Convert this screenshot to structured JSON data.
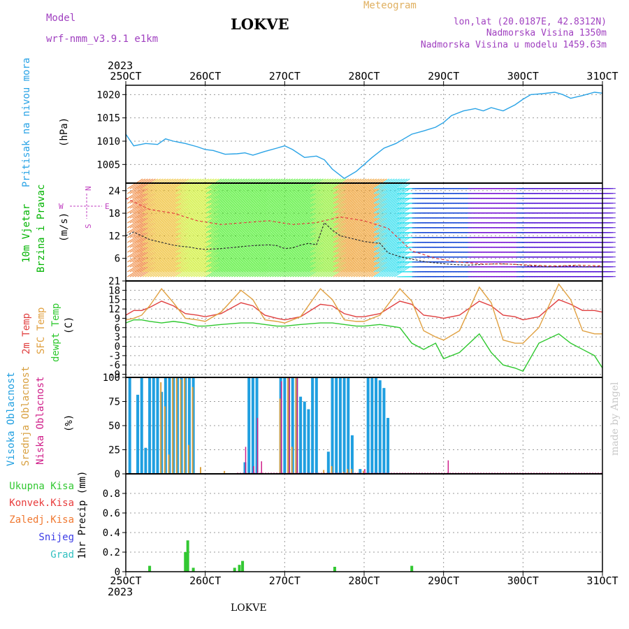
{
  "header": {
    "model_label": "Model",
    "model_name": "wrf-nmm_v3.9.1 e1km",
    "title": "LOKVE",
    "product": "Meteogram",
    "coords": "lon,lat (20.0187E, 42.8312N)",
    "altitude": "Nadmorska Visina 1350m",
    "model_altitude": "Nadmorska Visina u modelu 1459.63m",
    "footer_name": "LOKVE",
    "credit": "made by Angel"
  },
  "colors": {
    "pressure": "#29a3e6",
    "temp2m": "#e04040",
    "sfc_temp": "#e0a040",
    "dewpt": "#2ec82e",
    "cloud_high": "#1f9fe0",
    "cloud_mid": "#d8a040",
    "cloud_low": "#d0208a",
    "precip_total": "#32c832",
    "precip_conv": "#e83c3c",
    "precip_frozen": "#f07830",
    "precip_snow": "#3c3ce6",
    "precip_hail": "#30c0c0",
    "wind_label": "#00b400",
    "compass": "#c040c0",
    "header": "#a040c0",
    "product": "#e0b060"
  },
  "chart_data": [
    {
      "type": "line",
      "panel": "pressure",
      "title": "Pritisak na nivou mora",
      "ylabel": "(hPa)",
      "x_unit": "days since 25 OCT 2023 00UTC",
      "x_ticks": [
        "25OCT",
        "26OCT",
        "27OCT",
        "28OCT",
        "29OCT",
        "30OCT",
        "31OCT"
      ],
      "year": "2023",
      "ylim": [
        1001,
        1022
      ],
      "yticks": [
        1005,
        1010,
        1015,
        1020
      ],
      "grid": true,
      "series": [
        {
          "name": "Pritisak na nivou mora",
          "x": [
            0,
            0.1,
            0.25,
            0.4,
            0.5,
            0.6,
            0.75,
            0.9,
            1.0,
            1.1,
            1.25,
            1.4,
            1.5,
            1.6,
            1.75,
            1.9,
            2.0,
            2.1,
            2.25,
            2.4,
            2.5,
            2.6,
            2.75,
            2.9,
            3.0,
            3.1,
            3.25,
            3.4,
            3.5,
            3.6,
            3.75,
            3.9,
            4.0,
            4.1,
            4.25,
            4.4,
            4.5,
            4.6,
            4.75,
            4.9,
            5.0,
            5.1,
            5.25,
            5.4,
            5.5,
            5.6,
            5.75,
            5.9,
            6.0
          ],
          "values": [
            1011.5,
            1009.0,
            1009.5,
            1009.3,
            1010.5,
            1010.0,
            1009.5,
            1008.8,
            1008.2,
            1008.0,
            1007.2,
            1007.3,
            1007.5,
            1007.0,
            1007.8,
            1008.5,
            1009.0,
            1008.2,
            1006.5,
            1006.8,
            1006.0,
            1004.0,
            1002.0,
            1003.5,
            1005.0,
            1006.5,
            1008.5,
            1009.5,
            1010.5,
            1011.5,
            1012.2,
            1013.0,
            1014.0,
            1015.5,
            1016.5,
            1017.0,
            1016.5,
            1017.2,
            1016.5,
            1017.8,
            1019.0,
            1020.0,
            1020.2,
            1020.5,
            1020.0,
            1019.2,
            1019.8,
            1020.5,
            1020.3
          ]
        }
      ]
    },
    {
      "type": "line",
      "panel": "wind",
      "title": "10m Vjetar Brzina i Pravac",
      "ylabel": "(m/s)",
      "compass": {
        "n": "N",
        "w": "W",
        "e": "E",
        "s": "S"
      },
      "ylim": [
        0,
        26
      ],
      "yticks": [
        6,
        12,
        18,
        24
      ],
      "grid": true,
      "series": [
        {
          "name": "wind speed",
          "x": [
            0,
            0.1,
            0.2,
            0.3,
            0.4,
            0.5,
            0.6,
            0.7,
            0.8,
            0.9,
            1.0,
            1.1,
            1.2,
            1.3,
            1.4,
            1.5,
            1.6,
            1.7,
            1.8,
            1.9,
            2.0,
            2.1,
            2.2,
            2.3,
            2.4,
            2.5,
            2.6,
            2.7,
            2.8,
            2.9,
            3.0,
            3.1,
            3.2,
            3.3,
            3.4,
            3.5,
            3.6,
            3.7,
            3.8,
            3.9,
            4.0,
            4.1,
            4.2,
            4.3,
            4.4,
            4.5,
            4.6,
            4.7,
            4.8,
            4.9,
            5.0,
            5.1,
            5.2,
            5.3,
            5.4,
            5.5,
            5.6,
            5.7,
            5.8,
            5.9,
            6.0
          ],
          "values": [
            12,
            13,
            12,
            11,
            10.5,
            10,
            9.5,
            9.2,
            9,
            8.6,
            8.4,
            8.5,
            8.6,
            8.8,
            9,
            9.2,
            9.4,
            9.5,
            9.6,
            9.4,
            8.6,
            8.8,
            9.5,
            10,
            9.6,
            15.5,
            13.5,
            12,
            11.5,
            11,
            10.5,
            10.2,
            10,
            7.5,
            6.8,
            6.2,
            5.8,
            5.4,
            5,
            4.8,
            4.6,
            4.4,
            4.3,
            4.2,
            4.3,
            4.4,
            4.5,
            4.6,
            4.5,
            4.4,
            4.2,
            4.0,
            3.9,
            3.8,
            3.8,
            3.9,
            4.0,
            3.9,
            3.8,
            3.8,
            3.8
          ]
        },
        {
          "name": "wind gust",
          "x": [
            0,
            0.3,
            0.6,
            0.9,
            1.2,
            1.5,
            1.8,
            2.1,
            2.4,
            2.7,
            3.0,
            3.3,
            3.6,
            3.9,
            4.2,
            4.5,
            4.8,
            5.1,
            5.4,
            5.7,
            6.0
          ],
          "values": [
            22,
            19,
            18,
            16,
            15,
            15.5,
            16,
            15,
            15.5,
            17,
            16,
            14,
            8,
            6,
            5,
            4.5,
            4.5,
            4.2,
            4.0,
            4.2,
            4.0
          ]
        }
      ]
    },
    {
      "type": "line",
      "panel": "temperature",
      "ylabel": "(C)",
      "ylim": [
        -10,
        21
      ],
      "yticks": [
        21,
        18,
        15,
        12,
        9,
        6,
        3,
        0,
        -3,
        -6,
        -9
      ],
      "grid": true,
      "series": [
        {
          "name": "2m Temp",
          "x": [
            0,
            0.1,
            0.2,
            0.3,
            0.45,
            0.6,
            0.75,
            0.9,
            1.0,
            1.2,
            1.45,
            1.6,
            1.75,
            1.9,
            2.0,
            2.2,
            2.45,
            2.6,
            2.75,
            2.9,
            3.0,
            3.2,
            3.45,
            3.6,
            3.75,
            3.9,
            4.0,
            4.2,
            4.45,
            4.6,
            4.75,
            4.9,
            5.0,
            5.2,
            5.45,
            5.6,
            5.75,
            5.9,
            6.0
          ],
          "values": [
            10,
            11.5,
            11.5,
            12.5,
            14.5,
            13,
            10.5,
            10,
            9.5,
            10.5,
            14,
            13,
            10,
            9,
            8.5,
            9.5,
            13.5,
            13,
            10.5,
            9.5,
            9.5,
            10.5,
            14.5,
            13.5,
            10,
            9.5,
            9,
            10,
            14.5,
            13,
            10,
            9.5,
            8.5,
            9.5,
            15,
            13.5,
            11.5,
            11.5,
            11
          ]
        },
        {
          "name": "SFC Temp",
          "x": [
            0,
            0.1,
            0.2,
            0.3,
            0.45,
            0.6,
            0.75,
            0.9,
            1.0,
            1.2,
            1.45,
            1.6,
            1.75,
            1.9,
            2.0,
            2.2,
            2.45,
            2.6,
            2.75,
            2.9,
            3.0,
            3.2,
            3.45,
            3.6,
            3.75,
            3.9,
            4.0,
            4.2,
            4.45,
            4.6,
            4.75,
            4.9,
            5.0,
            5.2,
            5.45,
            5.6,
            5.75,
            5.9,
            6.0
          ],
          "values": [
            8.5,
            9,
            10,
            13,
            18.5,
            14,
            9,
            8.5,
            8,
            11,
            18,
            15,
            8.5,
            8,
            7.5,
            9.5,
            18.5,
            15,
            8.5,
            8,
            8,
            10,
            18.5,
            14.5,
            5,
            3,
            2,
            5,
            19,
            14,
            2,
            1,
            1,
            6,
            20,
            15,
            5,
            4,
            4
          ]
        },
        {
          "name": "dewpt Temp",
          "x": [
            0,
            0.1,
            0.2,
            0.3,
            0.45,
            0.6,
            0.75,
            0.9,
            1.0,
            1.2,
            1.45,
            1.6,
            1.75,
            1.9,
            2.0,
            2.2,
            2.45,
            2.6,
            2.75,
            2.9,
            3.0,
            3.2,
            3.45,
            3.6,
            3.75,
            3.9,
            4.0,
            4.2,
            4.45,
            4.6,
            4.75,
            4.9,
            5.0,
            5.2,
            5.45,
            5.6,
            5.75,
            5.9,
            6.0
          ],
          "values": [
            7.5,
            8.5,
            8.5,
            8,
            7.5,
            8,
            7.5,
            6.5,
            6.5,
            7,
            7.5,
            7.5,
            7,
            6.5,
            6.5,
            7,
            7.5,
            7.5,
            7,
            6.5,
            6.5,
            7,
            6,
            1,
            -1,
            1,
            -4,
            -2,
            4,
            -2,
            -6,
            -7,
            -8,
            1,
            4,
            1,
            -1,
            -3,
            -7
          ]
        }
      ]
    },
    {
      "type": "bar",
      "panel": "cloud",
      "ylabel": "(%)",
      "ylim": [
        0,
        100
      ],
      "yticks": [
        0,
        25,
        50,
        75,
        100
      ],
      "grid": true,
      "series": [
        {
          "name": "Visoka Oblacnost",
          "x": [
            0.05,
            0.15,
            0.2,
            0.25,
            0.3,
            0.35,
            0.4,
            0.45,
            0.5,
            0.55,
            0.6,
            0.65,
            0.7,
            0.75,
            0.8,
            0.85,
            1.5,
            1.55,
            1.6,
            1.65,
            1.95,
            2.0,
            2.05,
            2.1,
            2.15,
            2.2,
            2.25,
            2.3,
            2.35,
            2.4,
            2.55,
            2.6,
            2.65,
            2.7,
            2.75,
            2.8,
            2.85,
            2.95,
            3.05,
            3.1,
            3.15,
            3.2,
            3.25,
            3.3
          ],
          "values": [
            100,
            82,
            100,
            27,
            100,
            100,
            100,
            85,
            100,
            100,
            100,
            100,
            100,
            100,
            100,
            100,
            12,
            100,
            100,
            100,
            100,
            100,
            100,
            100,
            100,
            80,
            75,
            67,
            100,
            100,
            23,
            100,
            100,
            100,
            100,
            100,
            40,
            5,
            100,
            100,
            100,
            97,
            89,
            58
          ]
        },
        {
          "name": "Srednja Oblacnost",
          "x": [
            0.45,
            0.5,
            0.55,
            0.6,
            0.65,
            0.7,
            0.75,
            0.8,
            0.85,
            0.95,
            1.25,
            1.95,
            2.05,
            2.1,
            2.15,
            2.5,
            2.6,
            2.75,
            2.8,
            2.85,
            3.0
          ],
          "values": [
            95,
            70,
            20,
            100,
            100,
            98,
            100,
            30,
            90,
            7,
            3,
            78,
            100,
            28,
            100,
            4,
            8,
            2,
            5,
            5,
            3
          ]
        },
        {
          "name": "Niska Oblacnost",
          "x": [
            1.4,
            1.5,
            1.6,
            1.65,
            1.7,
            1.75,
            1.95,
            2.05,
            2.15,
            3.0,
            3.05,
            4.05
          ],
          "values": [
            0,
            28,
            8,
            58,
            13,
            1,
            96,
            100,
            100,
            5,
            1,
            14
          ]
        }
      ]
    },
    {
      "type": "bar",
      "panel": "precip",
      "ylabel": "1hr Precip (mm)",
      "ylim": [
        0,
        1.0
      ],
      "yticks": [
        0,
        0.2,
        0.4,
        0.6,
        0.8
      ],
      "grid": true,
      "series": [
        {
          "name": "Ukupna Kisa",
          "x": [
            0.3,
            0.75,
            0.78,
            0.85,
            1.37,
            1.43,
            1.47,
            2.63,
            3.6
          ],
          "values": [
            0.06,
            0.2,
            0.32,
            0.04,
            0.04,
            0.07,
            0.11,
            0.05,
            0.06
          ]
        },
        {
          "name": "Konvek.Kisa",
          "x": [],
          "values": []
        },
        {
          "name": "Zaledj.Kisa",
          "x": [],
          "values": []
        },
        {
          "name": "Snijeg",
          "x": [],
          "values": []
        },
        {
          "name": "Grad",
          "x": [],
          "values": []
        }
      ]
    }
  ]
}
